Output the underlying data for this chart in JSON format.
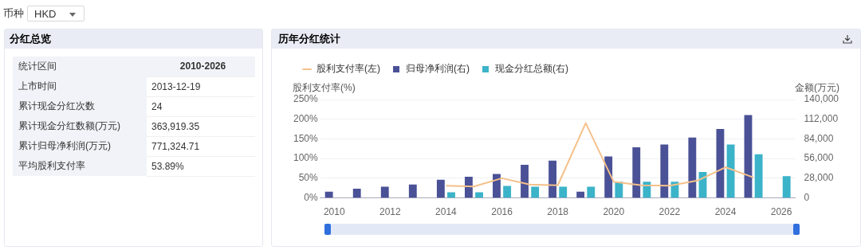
{
  "chart_data": [
    {
      "type": "other",
      "title": "分红总览",
      "annotations": [
        "币种",
        "HKD",
        "统计区间",
        "2010-2026",
        "上市时间",
        "2013-12-19",
        "累计现金分红次数",
        "24",
        "累计现金分红数额(万元)",
        "363,919.35",
        "累计归母净利润(万元)",
        "771,324.71",
        "平均股利支付率",
        "53.89%"
      ]
    },
    {
      "type": "bar",
      "title": "历年分红统计",
      "ylabel": "股利支付率(%)",
      "y2label": "金额(万元)",
      "categories": [
        "2010",
        null,
        "2012",
        null,
        "2014",
        null,
        "2016",
        null,
        "2018",
        null,
        "2020",
        null,
        "2022",
        null,
        "2024",
        null,
        "2026"
      ],
      "series": [
        {
          "name": "股利支付率(左)",
          "type": "line",
          "color": "#f5c08a",
          "values": [
            null,
            null,
            null,
            null,
            31,
            29,
            50,
            34,
            32,
            190,
            41,
            32,
            31,
            44,
            78,
            52,
            null
          ]
        },
        {
          "name": "归母净利润(右)",
          "type": "bar",
          "axis": "y2",
          "color": "#4a5196",
          "values": [
            9000,
            13000,
            16000,
            19000,
            26000,
            30000,
            34000,
            47000,
            53000,
            9000,
            59000,
            72000,
            76000,
            86000,
            98000,
            118000,
            null
          ]
        },
        {
          "name": "现金分红总额(右)",
          "type": "bar",
          "axis": "y2",
          "color": "#3bb3c9",
          "values": [
            null,
            null,
            null,
            null,
            8000,
            8000,
            17000,
            16000,
            16000,
            16000,
            23000,
            23000,
            23000,
            37000,
            76000,
            62000,
            31000
          ]
        }
      ],
      "ylim": [
        0,
        250
      ],
      "yticks": [
        {
          "value": 0,
          "label": "0%"
        },
        {
          "value": 50,
          "label": "50%"
        },
        {
          "value": 100,
          "label": "100%"
        },
        {
          "value": 150,
          "label": "150%"
        },
        {
          "value": 200,
          "label": "200%"
        },
        {
          "value": 250,
          "label": "250%"
        }
      ],
      "y2lim": [
        0,
        140000
      ],
      "y2ticks": [
        {
          "value": 0,
          "label": "0"
        },
        {
          "value": 28000,
          "label": "28,000"
        },
        {
          "value": 56000,
          "label": "56,000"
        },
        {
          "value": 84000,
          "label": "84,000"
        },
        {
          "value": 112000,
          "label": "112,000"
        },
        {
          "value": 140000,
          "label": "140,000"
        }
      ],
      "grid": "y",
      "legend": "top left",
      "marker": "none",
      "line_style": "solid"
    }
  ]
}
